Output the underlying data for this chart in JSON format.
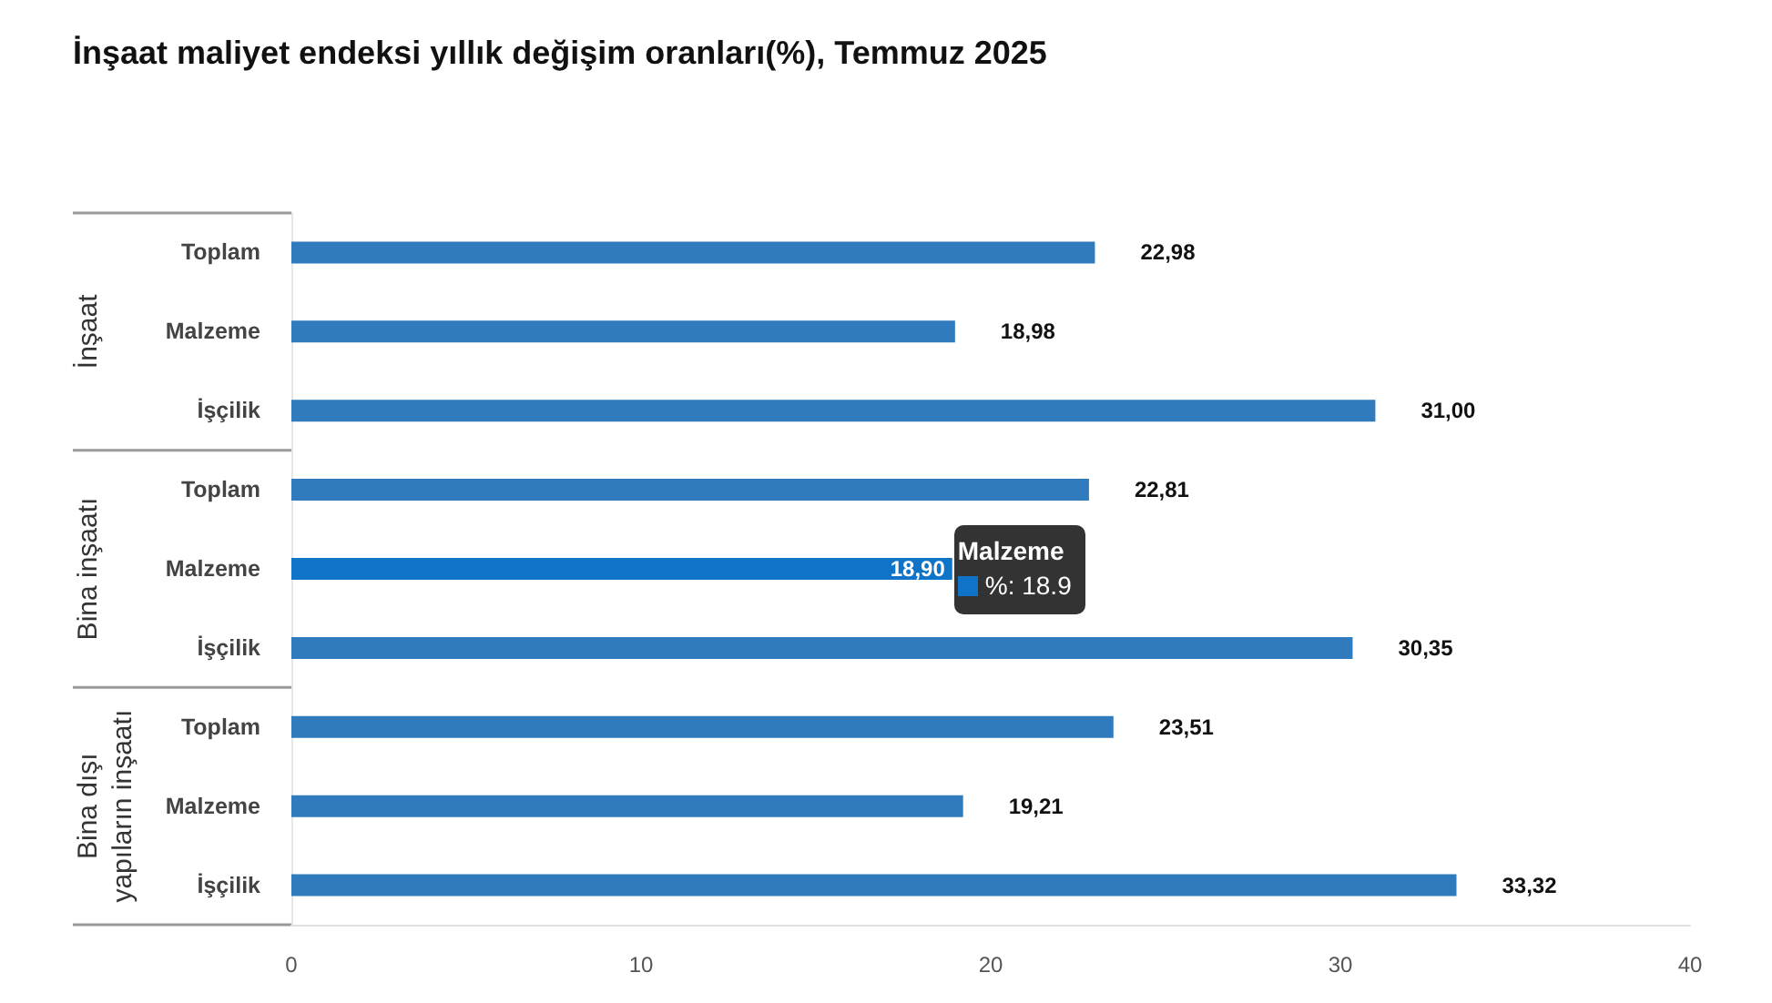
{
  "chart_data": {
    "type": "bar",
    "orientation": "horizontal",
    "title": "İnşaat maliyet endeksi yıllık değişim oranları(%), Temmuz 2025",
    "categories": [
      "Toplam",
      "Malzeme",
      "İşçilik",
      "Toplam",
      "Malzeme",
      "İşçilik",
      "Toplam",
      "Malzeme",
      "İşçilik"
    ],
    "values": [
      22.98,
      18.98,
      31.0,
      22.81,
      18.9,
      30.35,
      23.51,
      19.21,
      33.32
    ],
    "colors": [
      "#2f7bbd",
      "#2f7bbd",
      "#2f7bbd",
      "#2f7bbd",
      "#0f74c8",
      "#2f7bbd",
      "#2f7bbd",
      "#2f7bbd",
      "#2f7bbd"
    ],
    "value_labels": [
      "22,98",
      "18,98",
      "31,00",
      "22,81",
      "18,90",
      "30,35",
      "23,51",
      "19,21",
      "33,32"
    ],
    "xlim": [
      0,
      40
    ],
    "xticks": [
      0,
      10,
      20,
      30,
      40
    ],
    "grid": false,
    "annotations": [
      "İnşaat",
      "Bina inşaatı",
      "Bina dışı yapıların inşaatı",
      {
        "text": "Malzeme\n%: 18.9",
        "x": 18.9
      }
    ]
  }
}
